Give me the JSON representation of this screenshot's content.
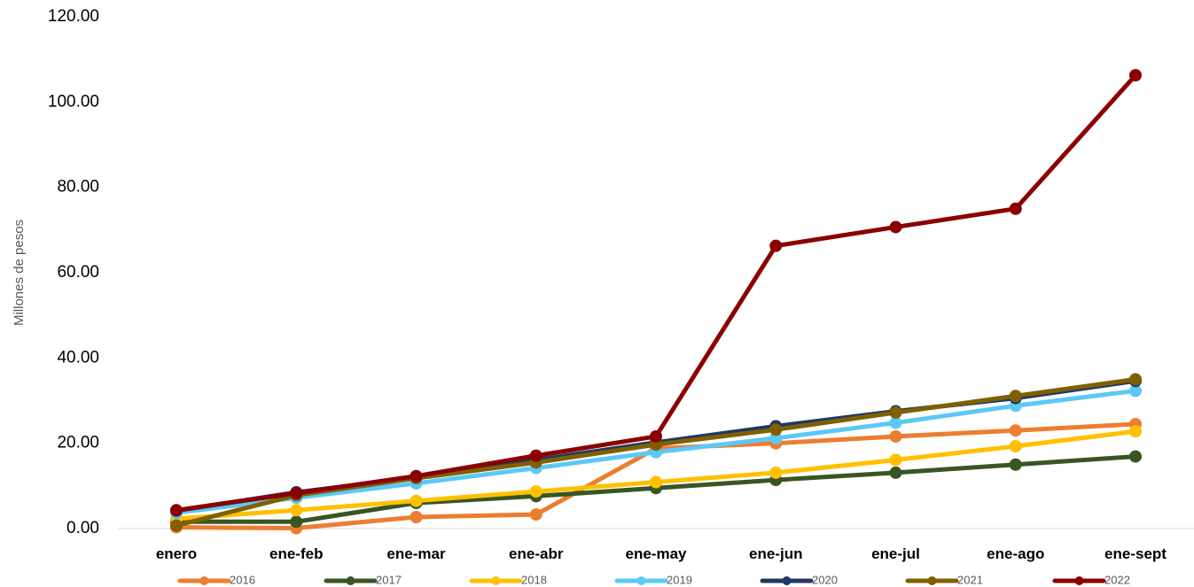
{
  "chart_data": {
    "type": "line",
    "title": "",
    "xlabel": "",
    "ylabel": "Millones de pesos",
    "ylim": [
      0,
      120
    ],
    "ytick_step": 20,
    "ytick_labels": [
      "0.00",
      "20.00",
      "40.00",
      "60.00",
      "80.00",
      "100.00",
      "120.00"
    ],
    "grid": false,
    "legend_position": "bottom",
    "categories": [
      "enero",
      "ene-feb",
      "ene-mar",
      "ene-abr",
      "ene-may",
      "ene-jun",
      "ene-jul",
      "ene-ago",
      "ene-sept"
    ],
    "series": [
      {
        "name": "2016",
        "color": "#ED7D31",
        "values": [
          0.3,
          0.1,
          2.7,
          3.3,
          18.8,
          20.0,
          21.6,
          23.0,
          24.5
        ]
      },
      {
        "name": "2017",
        "color": "#375623",
        "values": [
          1.6,
          1.6,
          6.0,
          7.6,
          9.5,
          11.4,
          13.1,
          15.0,
          16.9
        ]
      },
      {
        "name": "2018",
        "color": "#FFC000",
        "values": [
          2.3,
          4.3,
          6.5,
          8.7,
          10.9,
          13.1,
          16.1,
          19.3,
          22.8
        ]
      },
      {
        "name": "2019",
        "color": "#5BC8F5",
        "values": [
          3.7,
          7.2,
          10.6,
          14.2,
          17.9,
          21.2,
          24.8,
          28.8,
          32.3
        ]
      },
      {
        "name": "2020",
        "color": "#203864",
        "values": [
          4.2,
          8.5,
          12.0,
          16.1,
          20.2,
          24.0,
          27.5,
          30.6,
          34.6
        ]
      },
      {
        "name": "2021",
        "color": "#7F6000",
        "values": [
          0.7,
          7.8,
          11.8,
          15.5,
          19.7,
          23.2,
          27.2,
          31.1,
          35.0
        ]
      },
      {
        "name": "2022",
        "color": "#8B0000",
        "values": [
          4.3,
          8.3,
          12.3,
          17.1,
          21.6,
          66.3,
          70.7,
          75.0,
          106.3
        ]
      }
    ]
  }
}
